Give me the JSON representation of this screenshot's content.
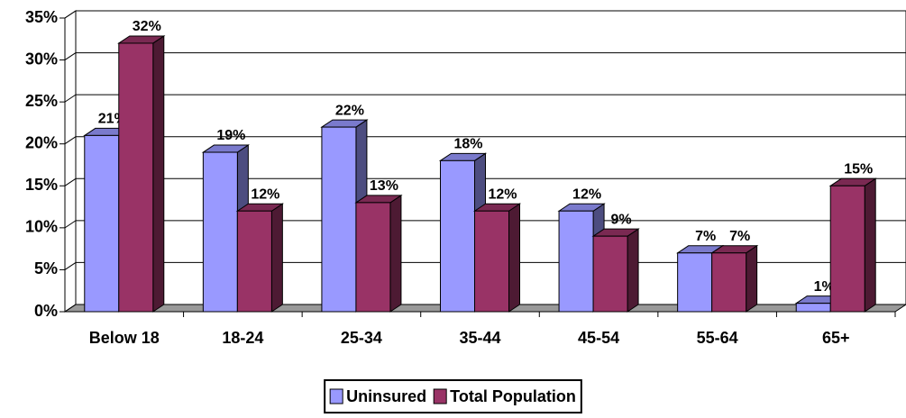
{
  "chart_data": {
    "type": "bar3d",
    "categories": [
      "Below 18",
      "18-24",
      "25-34",
      "35-44",
      "45-54",
      "55-64",
      "65+"
    ],
    "series": [
      {
        "name": "Uninsured",
        "color": "#9999ff",
        "values": [
          21,
          19,
          22,
          18,
          12,
          7,
          1
        ],
        "value_labels": [
          "21%",
          "19%",
          "22%",
          "18%",
          "12%",
          "7%",
          "1%"
        ]
      },
      {
        "name": "Total Population",
        "color": "#993366",
        "values": [
          32,
          12,
          13,
          12,
          9,
          7,
          15
        ],
        "value_labels": [
          "32%",
          "12%",
          "13%",
          "12%",
          "9%",
          "7%",
          "15%"
        ]
      }
    ],
    "ylim": [
      0,
      35
    ],
    "yticks": [
      {
        "value": 0,
        "label": "0%"
      },
      {
        "value": 5,
        "label": "5%"
      },
      {
        "value": 10,
        "label": "10%"
      },
      {
        "value": 15,
        "label": "15%"
      },
      {
        "value": 20,
        "label": "20%"
      },
      {
        "value": 25,
        "label": "25%"
      },
      {
        "value": 30,
        "label": "30%"
      },
      {
        "value": 35,
        "label": "35%"
      }
    ],
    "grid": true,
    "legend": "bottom"
  }
}
